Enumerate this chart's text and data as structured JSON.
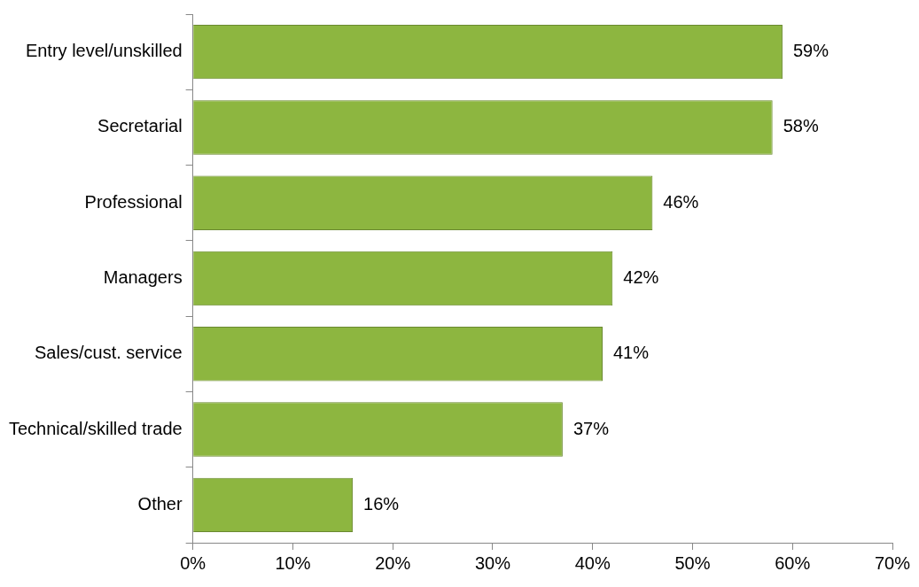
{
  "chart_data": {
    "type": "bar",
    "orientation": "horizontal",
    "categories": [
      "Entry level/unskilled",
      "Secretarial",
      "Professional",
      "Managers",
      "Sales/cust. service",
      "Technical/skilled trade",
      "Other"
    ],
    "values": [
      59,
      58,
      46,
      42,
      41,
      37,
      16
    ],
    "value_labels": [
      "59%",
      "58%",
      "46%",
      "42%",
      "41%",
      "37%",
      "16%"
    ],
    "color": "#8db640",
    "xlim": [
      0,
      70
    ],
    "xticks": [
      {
        "value": 0,
        "label": "0%"
      },
      {
        "value": 10,
        "label": "10%"
      },
      {
        "value": 20,
        "label": "20%"
      },
      {
        "value": 30,
        "label": "30%"
      },
      {
        "value": 40,
        "label": "40%"
      },
      {
        "value": 50,
        "label": "50%"
      },
      {
        "value": 60,
        "label": "60%"
      },
      {
        "value": 70,
        "label": "70%"
      }
    ]
  }
}
